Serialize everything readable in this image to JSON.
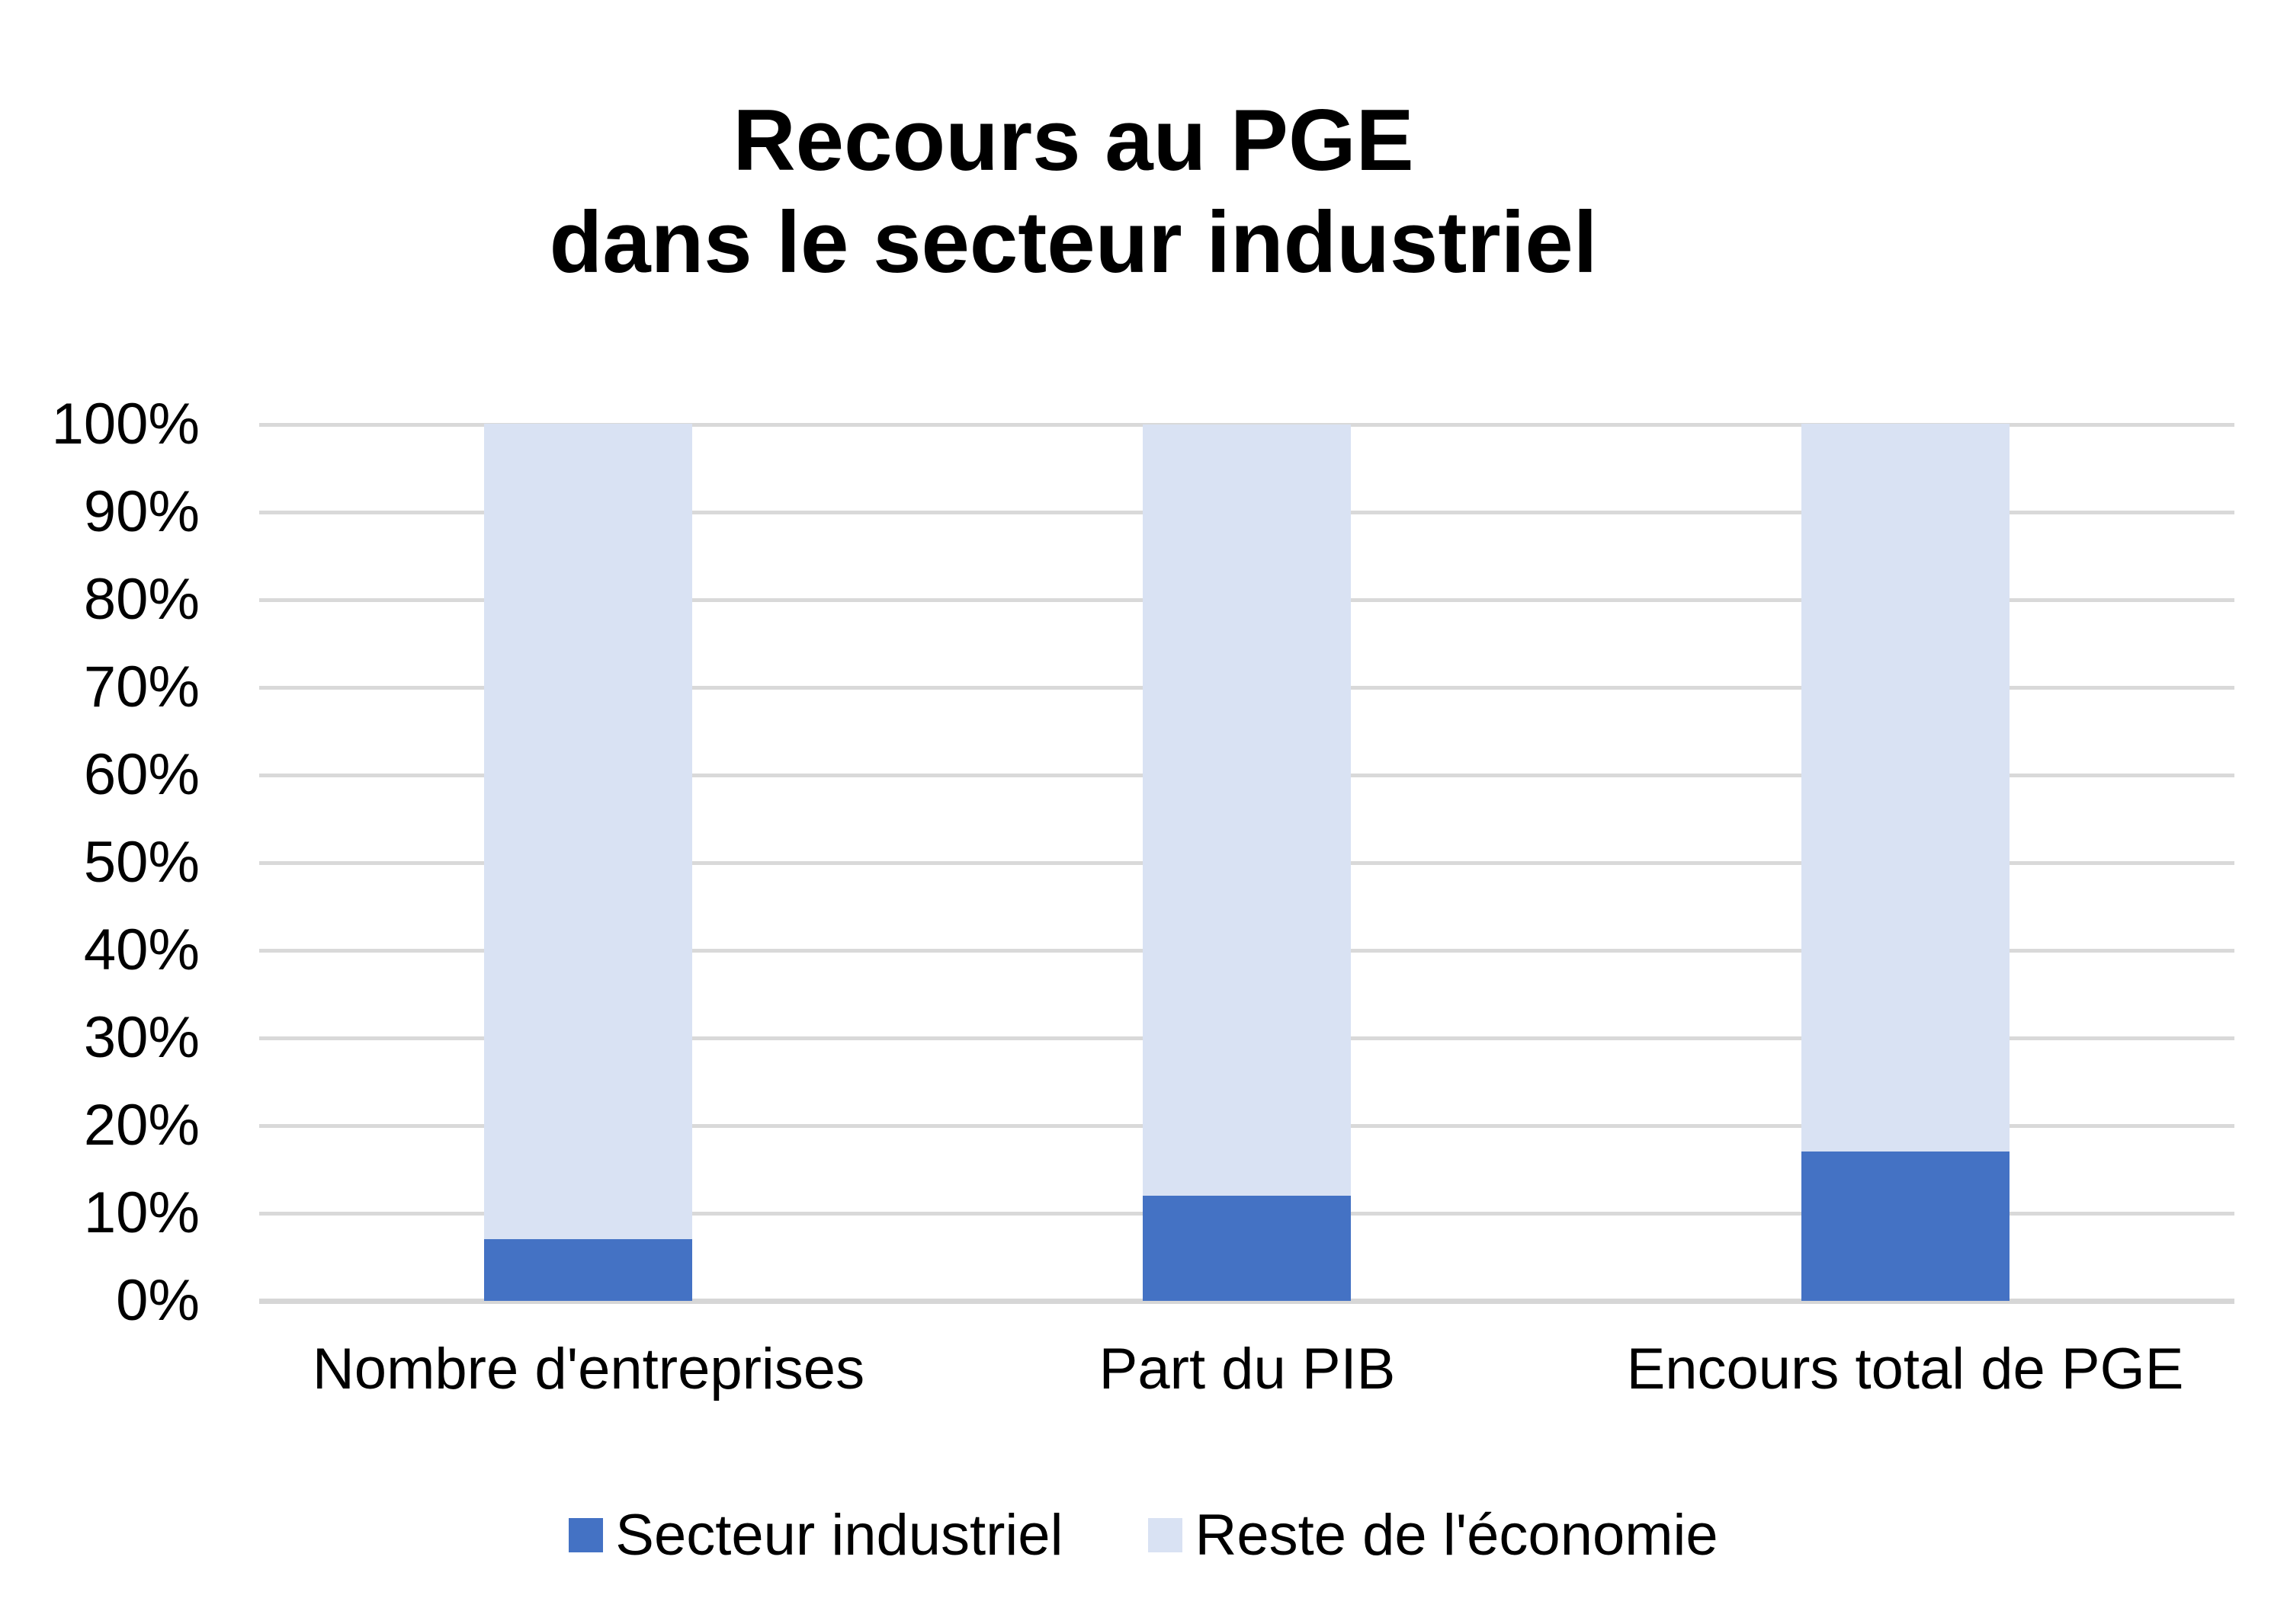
{
  "chart_data": {
    "type": "bar",
    "stacked": true,
    "title": "Recours au PGE dans le secteur industriel",
    "title_line1": "Recours au PGE",
    "title_line2": "dans le secteur industriel",
    "categories": [
      "Nombre d'entreprises",
      "Part du PIB",
      "Encours total de PGE"
    ],
    "series": [
      {
        "name": "Secteur industriel",
        "color": "#4472C4",
        "values": [
          7,
          12,
          17
        ]
      },
      {
        "name": "Reste de l'économie",
        "color": "#D9E2F3",
        "values": [
          93,
          88,
          83
        ]
      }
    ],
    "value_unit": "%",
    "ylim": [
      0,
      100
    ],
    "yticks": [
      "0%",
      "10%",
      "20%",
      "30%",
      "40%",
      "50%",
      "60%",
      "70%",
      "80%",
      "90%",
      "100%"
    ],
    "xlabel": "",
    "ylabel": "",
    "grid": true,
    "legend_position": "bottom",
    "colors": {
      "gridline": "#D9D9D9",
      "axis_line": "#D6D6D6",
      "text": "#000000",
      "background": "#FFFFFF"
    }
  }
}
